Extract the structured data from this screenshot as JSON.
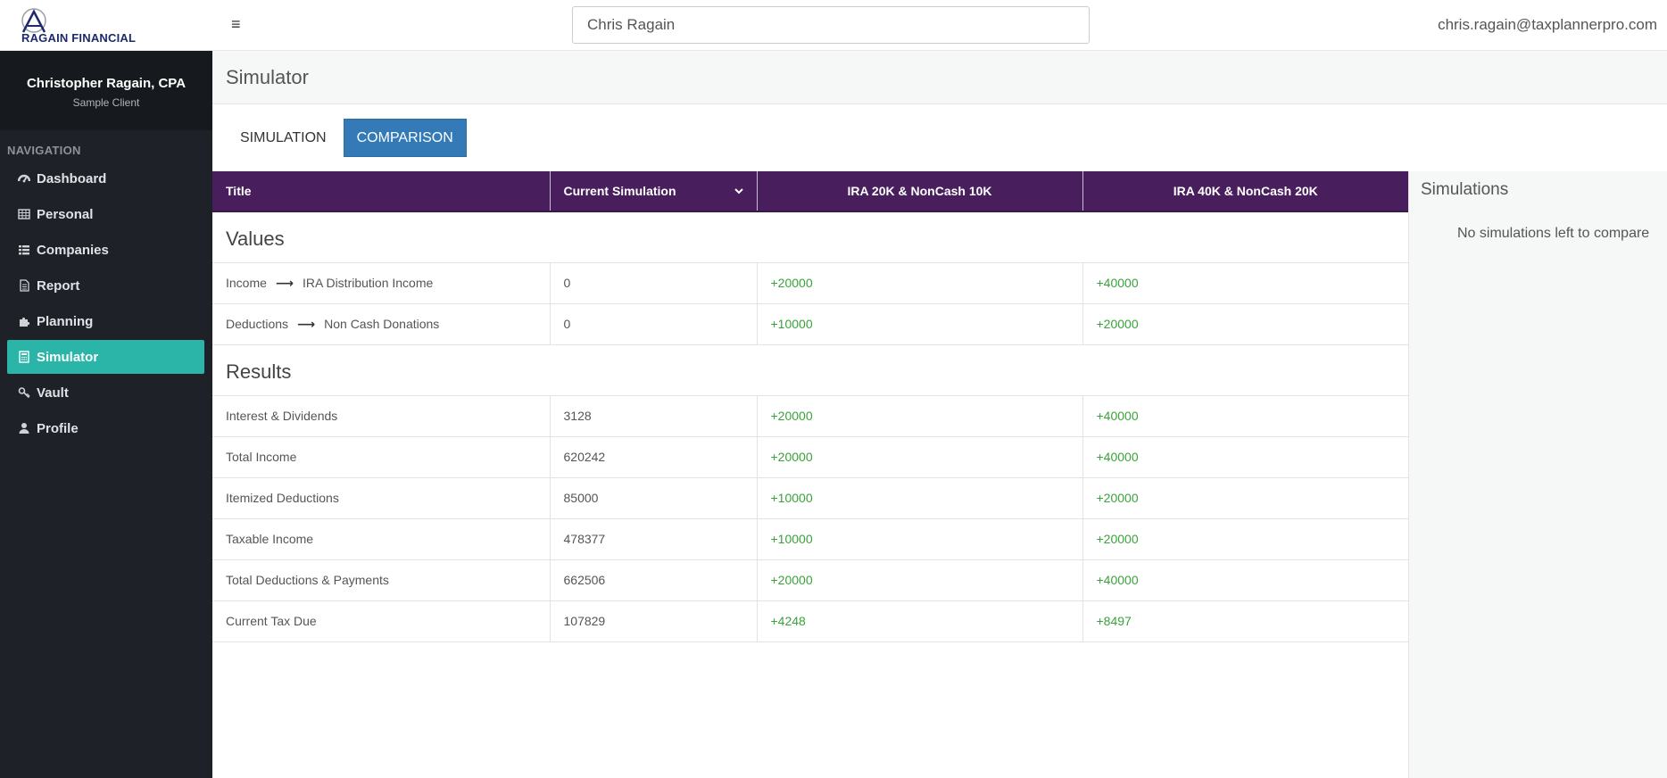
{
  "app": {
    "logo_text": "RAGAIN FINANCIAL",
    "client_search_value": "Chris Ragain",
    "user_email": "chris.ragain@taxplannerpro.com"
  },
  "sidebar": {
    "profile_name": "Christopher Ragain, CPA",
    "profile_sub": "Sample Client",
    "nav_heading": "NAVIGATION",
    "items": [
      {
        "label": "Dashboard",
        "icon": "dashboard-icon"
      },
      {
        "label": "Personal",
        "icon": "table-icon"
      },
      {
        "label": "Companies",
        "icon": "list-icon"
      },
      {
        "label": "Report",
        "icon": "document-icon"
      },
      {
        "label": "Planning",
        "icon": "puzzle-icon"
      },
      {
        "label": "Simulator",
        "icon": "calculator-icon",
        "active": true
      },
      {
        "label": "Vault",
        "icon": "key-icon"
      },
      {
        "label": "Profile",
        "icon": "user-icon"
      }
    ]
  },
  "page": {
    "title": "Simulator",
    "tabs": [
      {
        "label": "SIMULATION",
        "active": false
      },
      {
        "label": "COMPARISON",
        "active": true
      }
    ]
  },
  "table": {
    "headers": {
      "title": "Title",
      "current": "Current Simulation",
      "sim1": "IRA 20K & NonCash 10K",
      "sim2": "IRA 40K & NonCash 20K"
    },
    "sections": {
      "values": "Values",
      "results": "Results"
    },
    "values_rows": [
      {
        "category": "Income",
        "item": "IRA Distribution Income",
        "current": "0",
        "sim1": "+20000",
        "sim2": "+40000"
      },
      {
        "category": "Deductions",
        "item": "Non Cash Donations",
        "current": "0",
        "sim1": "+10000",
        "sim2": "+20000"
      }
    ],
    "results_rows": [
      {
        "label": "Interest & Dividends",
        "current": "3128",
        "sim1": "+20000",
        "sim2": "+40000"
      },
      {
        "label": "Total Income",
        "current": "620242",
        "sim1": "+20000",
        "sim2": "+40000"
      },
      {
        "label": "Itemized Deductions",
        "current": "85000",
        "sim1": "+10000",
        "sim2": "+20000"
      },
      {
        "label": "Taxable Income",
        "current": "478377",
        "sim1": "+10000",
        "sim2": "+20000"
      },
      {
        "label": "Total Deductions & Payments",
        "current": "662506",
        "sim1": "+20000",
        "sim2": "+40000"
      },
      {
        "label": "Current Tax Due",
        "current": "107829",
        "sim1": "+4248",
        "sim2": "+8497"
      }
    ]
  },
  "right_panel": {
    "title": "Simulations",
    "empty_text": "No simulations left to compare"
  },
  "colors": {
    "header_purple": "#481e5c",
    "sidebar_bg": "#1e2228",
    "active_teal": "#2bb5a8",
    "tab_blue": "#337ab7",
    "positive_green": "#3aa23a"
  }
}
